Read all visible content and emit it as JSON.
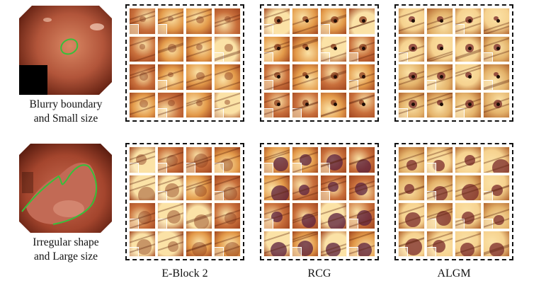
{
  "cases": [
    {
      "caption_line1": "Blurry boundary",
      "caption_line2": "and Small size"
    },
    {
      "caption_line1": "Irregular shape",
      "caption_line2": "and Large size"
    }
  ],
  "column_labels": [
    "E-Block 2",
    "RCG",
    "ALGM"
  ],
  "colors": {
    "tissue": "#b2553a",
    "tissue_dark": "#6b2313",
    "boundary": "#36c03a",
    "heat_light": "#fbe2a6",
    "heat_mid": "#e39a4a",
    "heat_dark": "#5a1f3c"
  }
}
